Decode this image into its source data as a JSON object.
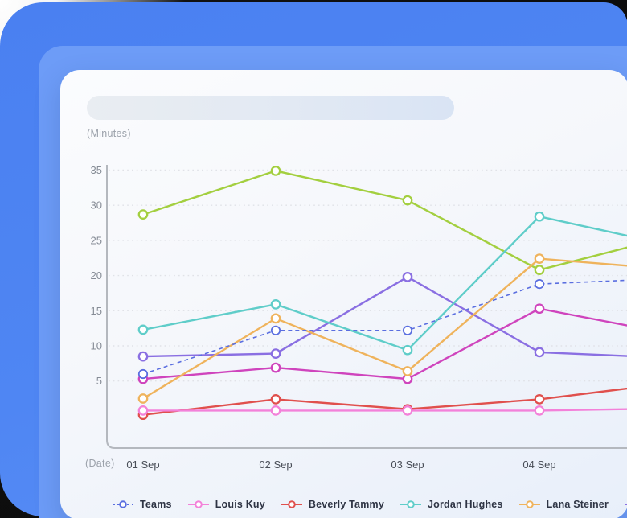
{
  "page": {
    "backdrop_blue": "#4a80f1",
    "backdrop_blue_light": "#6d9cf7",
    "card_background": "#f5f7fb",
    "outer_corner_dark": "#0a0a0a"
  },
  "card": {
    "skeleton_bar_colors": {
      "from": "#e9edf2",
      "to": "#d9e4f4"
    }
  },
  "chart_data": {
    "type": "line",
    "title": "",
    "ylabel": "(Minutes)",
    "xlabel": "(Date)",
    "categories": [
      "01 Sep",
      "02 Sep",
      "03 Sep",
      "04 Sep",
      ""
    ],
    "y_ticks": [
      5,
      10,
      15,
      20,
      25,
      30,
      35
    ],
    "ylim": [
      0,
      35
    ],
    "grid": "horizontal-dotted",
    "legend_position": "bottom",
    "axis_color": "#b4b8be",
    "gridline_color": "#e0e2e7",
    "tick_label_color": "#868c96",
    "x_label_color": "#4a4f58",
    "series": [
      {
        "name": "Teams",
        "color": "#5a6ee0",
        "style": "dashed",
        "values": [
          6.0,
          12.2,
          12.2,
          18.8,
          19.6
        ]
      },
      {
        "name": "Louis Kuy",
        "color": "#f381d9",
        "style": "solid",
        "values": [
          0.8,
          0.8,
          0.8,
          0.8,
          1.1
        ]
      },
      {
        "name": "Beverly Tammy",
        "color": "#e0504d",
        "style": "solid",
        "values": [
          0.2,
          2.4,
          1.0,
          2.4,
          4.7
        ]
      },
      {
        "name": "Jordan Hughes",
        "color": "#5fcdc9",
        "style": "solid",
        "values": [
          12.3,
          15.9,
          9.4,
          28.4,
          24.3
        ]
      },
      {
        "name": "Lana Steiner",
        "color": "#efb35c",
        "style": "solid",
        "values": [
          2.5,
          13.9,
          6.4,
          22.4,
          20.9
        ]
      },
      {
        "name": "",
        "color": "#8a6fe2",
        "style": "solid",
        "values": [
          8.5,
          8.9,
          19.8,
          9.1,
          8.3
        ]
      },
      {
        "name": "",
        "color": "#cf44bd",
        "style": "solid",
        "values": [
          5.3,
          6.9,
          5.3,
          15.3,
          11.7
        ]
      },
      {
        "name": "",
        "color": "#a3cf3f",
        "style": "solid",
        "values": [
          28.7,
          34.9,
          30.7,
          20.8,
          25.6
        ]
      }
    ],
    "legend_visible_labels": [
      "Teams",
      "Louis Kuy",
      "Beverly Tammy",
      "Jordan Hughes",
      "Lana Steiner"
    ]
  }
}
